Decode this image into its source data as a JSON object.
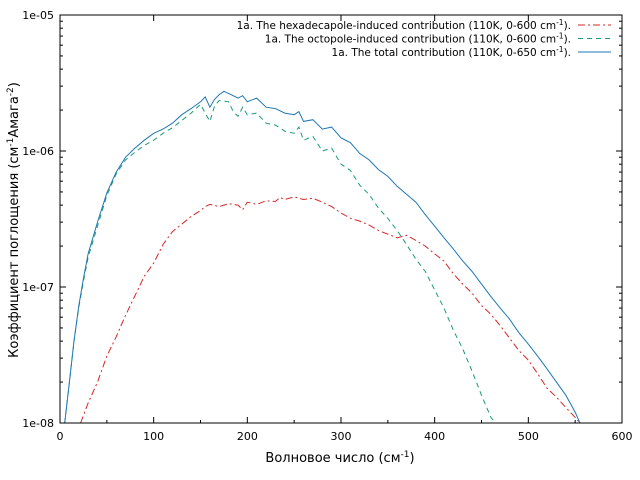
{
  "chart_data": {
    "type": "line",
    "title": "",
    "xlabel": "Волновое число (см",
    "xlabel_sup": "-1",
    "xlabel_end": ")",
    "ylabel": "Коэффициент поглощения (см",
    "ylabel_sup1": "-1",
    "ylabel_mid": "Амага",
    "ylabel_sup2": "-2",
    "ylabel_end": ")",
    "xlim": [
      0,
      600
    ],
    "ylim": [
      1e-08,
      1e-05
    ],
    "yscale": "log",
    "grid": false,
    "legend_position": "top-right",
    "xticks": [
      0,
      100,
      200,
      300,
      400,
      500,
      600
    ],
    "xtick_labels": [
      "0",
      "100",
      "200",
      "300",
      "400",
      "500",
      "600"
    ],
    "yticks": [
      1e-08,
      1e-07,
      1e-06,
      1e-05
    ],
    "ytick_labels": [
      "1e-08",
      "1e-07",
      "1e-06",
      "1e-05"
    ],
    "series": [
      {
        "name": "1a. The hexadecapole-induced contribution (110K, 0-600 cm",
        "name_sup": "-1",
        "name_end": ").",
        "color": "#d62728",
        "dash": "dashdot",
        "points": [
          [
            22,
            1e-08
          ],
          [
            30,
            1.4e-08
          ],
          [
            40,
            2e-08
          ],
          [
            50,
            3.1e-08
          ],
          [
            60,
            4.3e-08
          ],
          [
            70,
            6.2e-08
          ],
          [
            80,
            8.6e-08
          ],
          [
            90,
            1.2e-07
          ],
          [
            100,
            1.5e-07
          ],
          [
            110,
            2.05e-07
          ],
          [
            120,
            2.55e-07
          ],
          [
            130,
            2.9e-07
          ],
          [
            140,
            3.3e-07
          ],
          [
            150,
            3.65e-07
          ],
          [
            155,
            3.9e-07
          ],
          [
            160,
            4.05e-07
          ],
          [
            170,
            3.9e-07
          ],
          [
            180,
            4.1e-07
          ],
          [
            190,
            4e-07
          ],
          [
            195,
            3.7e-07
          ],
          [
            200,
            4.2e-07
          ],
          [
            210,
            4.05e-07
          ],
          [
            220,
            4.3e-07
          ],
          [
            230,
            4.25e-07
          ],
          [
            235,
            4.55e-07
          ],
          [
            240,
            4.4e-07
          ],
          [
            250,
            4.6e-07
          ],
          [
            260,
            4.4e-07
          ],
          [
            270,
            4.5e-07
          ],
          [
            280,
            4.2e-07
          ],
          [
            290,
            3.9e-07
          ],
          [
            300,
            3.5e-07
          ],
          [
            310,
            3.2e-07
          ],
          [
            320,
            3.05e-07
          ],
          [
            330,
            2.85e-07
          ],
          [
            340,
            2.6e-07
          ],
          [
            350,
            2.45e-07
          ],
          [
            360,
            2.3e-07
          ],
          [
            370,
            2.4e-07
          ],
          [
            380,
            2.2e-07
          ],
          [
            390,
            2e-07
          ],
          [
            400,
            1.75e-07
          ],
          [
            410,
            1.55e-07
          ],
          [
            420,
            1.25e-07
          ],
          [
            430,
            1.05e-07
          ],
          [
            440,
            9e-08
          ],
          [
            450,
            7.3e-08
          ],
          [
            460,
            6.3e-08
          ],
          [
            470,
            5.2e-08
          ],
          [
            480,
            4.2e-08
          ],
          [
            490,
            3.4e-08
          ],
          [
            500,
            2.9e-08
          ],
          [
            510,
            2.3e-08
          ],
          [
            520,
            1.8e-08
          ],
          [
            530,
            1.55e-08
          ],
          [
            540,
            1.3e-08
          ],
          [
            550,
            1.1e-08
          ],
          [
            555,
            1e-08
          ]
        ]
      },
      {
        "name": "1a. The octopole-induced contribution (110K, 0-600 cm",
        "name_sup": "-1",
        "name_end": ").",
        "color": "#1a9a78",
        "dash": "dashed",
        "points": [
          [
            5,
            1e-08
          ],
          [
            10,
            2e-08
          ],
          [
            15,
            4e-08
          ],
          [
            20,
            7e-08
          ],
          [
            25,
            1.1e-07
          ],
          [
            30,
            1.65e-07
          ],
          [
            40,
            2.8e-07
          ],
          [
            50,
            4.7e-07
          ],
          [
            60,
            6.8e-07
          ],
          [
            70,
            8.6e-07
          ],
          [
            80,
            9.8e-07
          ],
          [
            90,
            1.1e-06
          ],
          [
            100,
            1.2e-06
          ],
          [
            110,
            1.35e-06
          ],
          [
            120,
            1.48e-06
          ],
          [
            130,
            1.68e-06
          ],
          [
            140,
            1.9e-06
          ],
          [
            150,
            2.2e-06
          ],
          [
            155,
            1.9e-06
          ],
          [
            160,
            1.65e-06
          ],
          [
            165,
            2.15e-06
          ],
          [
            170,
            2.35e-06
          ],
          [
            180,
            2.3e-06
          ],
          [
            185,
            1.95e-06
          ],
          [
            190,
            1.8e-06
          ],
          [
            195,
            2.1e-06
          ],
          [
            200,
            1.85e-06
          ],
          [
            210,
            1.9e-06
          ],
          [
            220,
            1.6e-06
          ],
          [
            230,
            1.55e-06
          ],
          [
            240,
            1.4e-06
          ],
          [
            250,
            1.35e-06
          ],
          [
            255,
            1.5e-06
          ],
          [
            260,
            1.2e-06
          ],
          [
            270,
            1.28e-06
          ],
          [
            280,
            1e-06
          ],
          [
            290,
            1.05e-06
          ],
          [
            300,
            8e-07
          ],
          [
            310,
            7.2e-07
          ],
          [
            320,
            5.6e-07
          ],
          [
            330,
            4.8e-07
          ],
          [
            340,
            3.8e-07
          ],
          [
            350,
            3.2e-07
          ],
          [
            360,
            2.6e-07
          ],
          [
            370,
            2.05e-07
          ],
          [
            380,
            1.6e-07
          ],
          [
            390,
            1.3e-07
          ],
          [
            400,
            9.5e-08
          ],
          [
            410,
            7e-08
          ],
          [
            420,
            4.8e-08
          ],
          [
            430,
            3.5e-08
          ],
          [
            440,
            2.4e-08
          ],
          [
            450,
            1.6e-08
          ],
          [
            460,
            1.1e-08
          ],
          [
            465,
            1e-08
          ]
        ]
      },
      {
        "name": "1a. The total contribution (110K, 0-650 cm",
        "name_sup": "-1",
        "name_end": ").",
        "color": "#1f77b4",
        "dash": "solid",
        "points": [
          [
            5,
            1e-08
          ],
          [
            10,
            2e-08
          ],
          [
            15,
            4e-08
          ],
          [
            20,
            7.2e-08
          ],
          [
            25,
            1.15e-07
          ],
          [
            30,
            1.75e-07
          ],
          [
            40,
            3e-07
          ],
          [
            50,
            4.9e-07
          ],
          [
            60,
            7e-07
          ],
          [
            70,
            9e-07
          ],
          [
            80,
            1.05e-06
          ],
          [
            90,
            1.2e-06
          ],
          [
            100,
            1.35e-06
          ],
          [
            110,
            1.45e-06
          ],
          [
            120,
            1.6e-06
          ],
          [
            130,
            1.85e-06
          ],
          [
            140,
            2.05e-06
          ],
          [
            150,
            2.3e-06
          ],
          [
            155,
            2.5e-06
          ],
          [
            160,
            2.1e-06
          ],
          [
            165,
            2.4e-06
          ],
          [
            170,
            2.6e-06
          ],
          [
            175,
            2.75e-06
          ],
          [
            180,
            2.65e-06
          ],
          [
            190,
            2.45e-06
          ],
          [
            195,
            2.55e-06
          ],
          [
            200,
            2.3e-06
          ],
          [
            210,
            2.45e-06
          ],
          [
            220,
            2.1e-06
          ],
          [
            230,
            2.05e-06
          ],
          [
            240,
            1.9e-06
          ],
          [
            250,
            1.85e-06
          ],
          [
            255,
            1.95e-06
          ],
          [
            260,
            1.65e-06
          ],
          [
            270,
            1.7e-06
          ],
          [
            280,
            1.45e-06
          ],
          [
            290,
            1.5e-06
          ],
          [
            300,
            1.25e-06
          ],
          [
            310,
            1.15e-06
          ],
          [
            320,
            9.6e-07
          ],
          [
            330,
            8.6e-07
          ],
          [
            340,
            7.3e-07
          ],
          [
            350,
            6.5e-07
          ],
          [
            360,
            5.5e-07
          ],
          [
            370,
            4.8e-07
          ],
          [
            380,
            4.2e-07
          ],
          [
            390,
            3.4e-07
          ],
          [
            400,
            2.8e-07
          ],
          [
            410,
            2.3e-07
          ],
          [
            420,
            1.9e-07
          ],
          [
            430,
            1.55e-07
          ],
          [
            440,
            1.3e-07
          ],
          [
            450,
            1.05e-07
          ],
          [
            460,
            8.5e-08
          ],
          [
            470,
            7e-08
          ],
          [
            480,
            5.8e-08
          ],
          [
            490,
            4.6e-08
          ],
          [
            500,
            3.8e-08
          ],
          [
            510,
            3.1e-08
          ],
          [
            520,
            2.5e-08
          ],
          [
            530,
            2e-08
          ],
          [
            540,
            1.6e-08
          ],
          [
            550,
            1.2e-08
          ],
          [
            555,
            1e-08
          ]
        ]
      }
    ]
  }
}
